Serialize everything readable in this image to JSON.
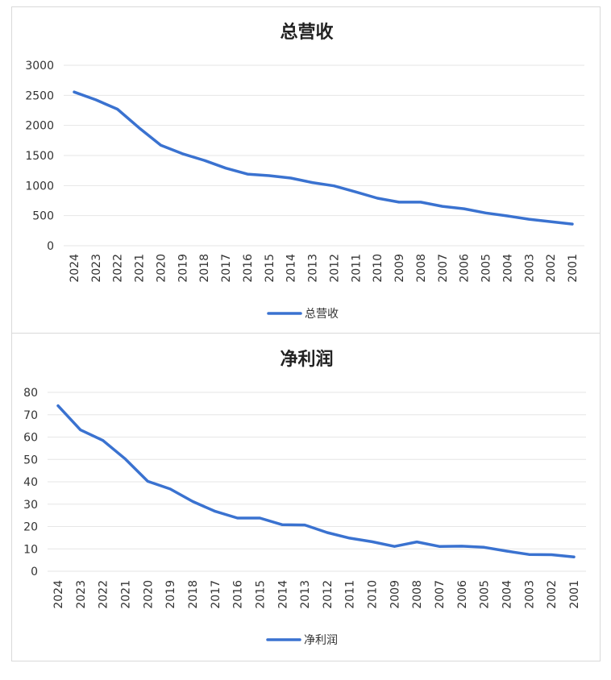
{
  "colors": {
    "series": "#3a72d0",
    "grid": "#e6e6e6",
    "text": "#333333"
  },
  "chart_data": [
    {
      "type": "line",
      "title": "总营收",
      "xlabel": "",
      "ylabel": "",
      "ylim": [
        0,
        3000
      ],
      "yticks": [
        0,
        500,
        1000,
        1500,
        2000,
        2500,
        3000
      ],
      "grid": true,
      "legend_position": "bottom",
      "categories": [
        "2024",
        "2023",
        "2022",
        "2021",
        "2020",
        "2019",
        "2018",
        "2017",
        "2016",
        "2015",
        "2014",
        "2013",
        "2012",
        "2011",
        "2010",
        "2009",
        "2008",
        "2007",
        "2006",
        "2005",
        "2004",
        "2003",
        "2002",
        "2001"
      ],
      "series": [
        {
          "name": "总营收",
          "values": [
            2555,
            2425,
            2270,
            1960,
            1670,
            1530,
            1420,
            1290,
            1190,
            1165,
            1125,
            1050,
            995,
            895,
            790,
            725,
            725,
            655,
            615,
            545,
            495,
            440,
            400,
            360
          ]
        }
      ]
    },
    {
      "type": "line",
      "title": "净利润",
      "xlabel": "",
      "ylabel": "",
      "ylim": [
        0,
        80
      ],
      "yticks": [
        0,
        10,
        20,
        30,
        40,
        50,
        60,
        70,
        80
      ],
      "grid": true,
      "legend_position": "bottom",
      "categories": [
        "2024",
        "2023",
        "2022",
        "2021",
        "2020",
        "2019",
        "2018",
        "2017",
        "2016",
        "2015",
        "2014",
        "2013",
        "2012",
        "2011",
        "2010",
        "2009",
        "2008",
        "2007",
        "2006",
        "2005",
        "2004",
        "2003",
        "2002",
        "2001"
      ],
      "series": [
        {
          "name": "净利润",
          "values": [
            74,
            63.2,
            58.5,
            50.2,
            40.2,
            36.8,
            31.2,
            26.8,
            23.8,
            23.8,
            20.8,
            20.7,
            17.3,
            14.8,
            13.2,
            11.1,
            13.1,
            11.1,
            11.2,
            10.7,
            9.0,
            7.5,
            7.4,
            6.4
          ]
        }
      ]
    }
  ]
}
